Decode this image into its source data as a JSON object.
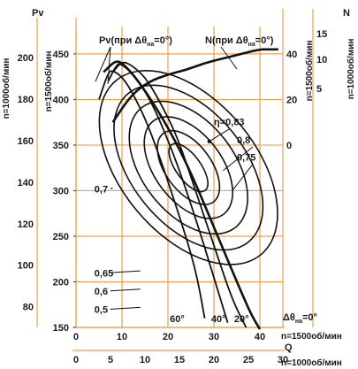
{
  "chart_data": {
    "type": "line",
    "axes": {
      "pv_1500": {
        "label": "Pv",
        "side_label": "n=1500об/мин",
        "ticks": [
          150,
          200,
          250,
          300,
          350,
          400,
          450
        ],
        "range": [
          150,
          480
        ]
      },
      "pv_1000": {
        "side_label": "n=1000об/мин",
        "ticks": [
          80,
          100,
          120,
          140,
          160,
          180,
          200
        ],
        "range": [
          70,
          215
        ]
      },
      "n_1500": {
        "label": "N",
        "side_label": "n=1500об/мин",
        "ticks": [
          0,
          20,
          40
        ],
        "range": [
          0,
          40
        ]
      },
      "n_1000": {
        "side_label": "n=1000об/мин",
        "ticks": [
          5,
          10,
          15
        ],
        "range": [
          5,
          15
        ]
      },
      "q_1500": {
        "label": "Q",
        "unit_label": "n=1500об/мин",
        "ticks": [
          0,
          10,
          20,
          30,
          40
        ],
        "range": [
          0,
          45
        ]
      },
      "q_1000": {
        "unit_label": "n=1000об/мин",
        "ticks": [
          0,
          5,
          10,
          15,
          20,
          25,
          30
        ],
        "range": [
          0,
          30
        ]
      }
    },
    "legend": {
      "pv": "Pv(при Δθ",
      "pv_sub": "на",
      "pv_tail": "=0°)",
      "n": "N(при Δθ",
      "n_sub": "на",
      "n_tail": "=0°)"
    },
    "efficiency_labels": [
      {
        "text": "η=0,83"
      },
      {
        "text": "0,8"
      },
      {
        "text": "0,75"
      },
      {
        "text": "0,7"
      },
      {
        "text": "0,65"
      },
      {
        "text": "0,6"
      },
      {
        "text": "0,5"
      }
    ],
    "angle_labels": [
      "60°",
      "40°",
      "20°"
    ],
    "angle_axis_label": "Δθ",
    "angle_axis_sub": "на",
    "angle_axis_tail": "=0°",
    "series": [
      {
        "name": "Pv(при Δθна=0°)",
        "x": [
          6,
          8,
          9,
          10,
          12,
          15,
          20,
          25,
          30,
          35,
          38,
          40
        ],
        "y": [
          430,
          440,
          442,
          440,
          430,
          410,
          370,
          320,
          260,
          200,
          165,
          148
        ]
      },
      {
        "name": "N(при Δθна=0°)",
        "x": [
          0,
          5,
          10,
          15,
          20,
          25,
          30,
          35,
          40,
          42,
          45
        ],
        "y": [
          10,
          22,
          28,
          31,
          33,
          36,
          38,
          40,
          42,
          42,
          42
        ]
      },
      {
        "name": "60°",
        "x": [
          5,
          7,
          8,
          10,
          12,
          15,
          18,
          22,
          26,
          28
        ],
        "y": [
          400,
          430,
          432,
          425,
          410,
          380,
          340,
          280,
          215,
          160
        ]
      },
      {
        "name": "40°",
        "x": [
          7,
          9,
          10,
          12,
          15,
          18,
          22,
          26,
          30,
          33
        ],
        "y": [
          420,
          440,
          438,
          430,
          410,
          380,
          330,
          270,
          205,
          155
        ]
      },
      {
        "name": "20°",
        "x": [
          8,
          10,
          12,
          15,
          18,
          22,
          26,
          30,
          34,
          37
        ],
        "y": [
          430,
          442,
          438,
          425,
          400,
          360,
          300,
          240,
          180,
          150
        ]
      }
    ]
  }
}
